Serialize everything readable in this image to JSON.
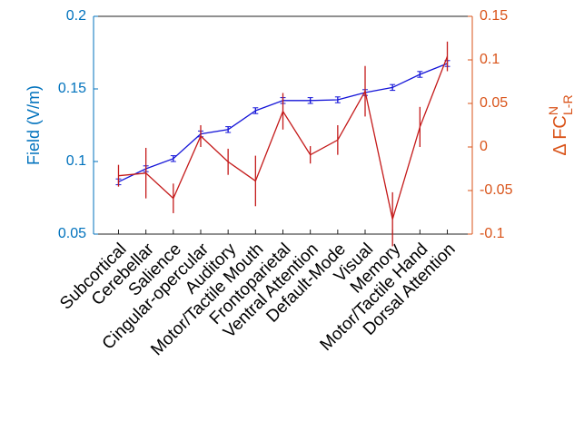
{
  "chart_data": {
    "type": "line",
    "ylabel": "Field (V/m)",
    "y2label": {
      "base": "Δ FC",
      "sup": "N",
      "sub": "L-R"
    },
    "categories": [
      "Subcortical",
      "Cerebellar",
      "Salience",
      "Cingular-opercular",
      "Auditory",
      "Motor/Tactile Mouth",
      "Frontoparietal",
      "Ventral Attention",
      "Default-Mode",
      "Visual",
      "Memory",
      "Motor/Tactile Hand",
      "Dorsal Attention"
    ],
    "series": [
      {
        "color": "#1414d8",
        "axis": "y",
        "values": [
          0.086,
          0.095,
          0.102,
          0.119,
          0.122,
          0.135,
          0.142,
          0.142,
          0.1425,
          0.1475,
          0.151,
          0.16,
          0.1675
        ],
        "errors": [
          0.002,
          0.002,
          0.002,
          0.002,
          0.002,
          0.002,
          0.002,
          0.002,
          0.002,
          0.002,
          0.002,
          0.002,
          0.002
        ]
      },
      {
        "color": "#c41a1a",
        "axis": "y2",
        "values": [
          -0.033,
          -0.03,
          -0.059,
          0.0125,
          -0.017,
          -0.039,
          0.041,
          -0.009,
          0.008,
          0.064,
          -0.083,
          0.023,
          0.104
        ],
        "errors": [
          0.0125,
          0.029,
          0.017,
          0.0125,
          0.015,
          0.029,
          0.021,
          0.01,
          0.017,
          0.029,
          0.031,
          0.023,
          0.017
        ]
      }
    ],
    "ylim": [
      0.05,
      0.2
    ],
    "yticks": [
      0.05,
      0.1,
      0.15,
      0.2
    ],
    "ycolor": "#0072bd",
    "y2lim": [
      -0.1,
      0.15
    ],
    "y2ticks": [
      -0.1,
      -0.05,
      0,
      0.05,
      0.1,
      0.15
    ],
    "y2color": "#d95319"
  }
}
